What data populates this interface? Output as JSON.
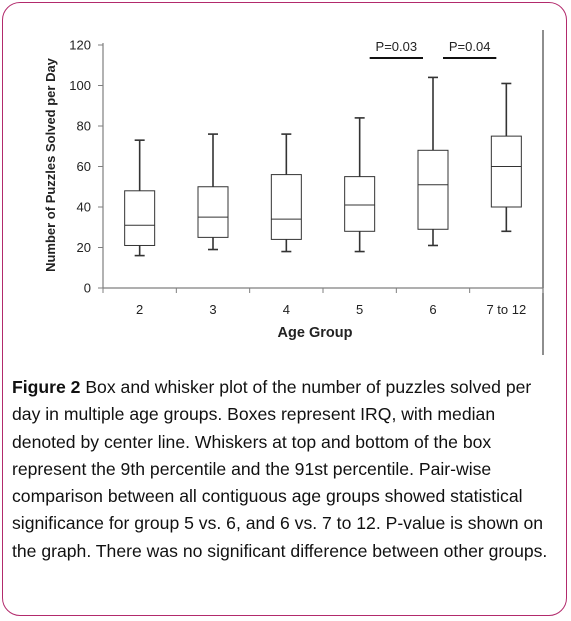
{
  "chart_data": {
    "type": "box",
    "xlabel": "Age Group",
    "ylabel": "Number of Puzzles Solved per Day",
    "ylim": [
      0,
      120
    ],
    "yticks": [
      0,
      20,
      40,
      60,
      80,
      100,
      120
    ],
    "grid": false,
    "categories": [
      "2",
      "3",
      "4",
      "5",
      "6",
      "7 to 12"
    ],
    "series": [
      {
        "boxes": [
          {
            "group": "2",
            "whisker_low": 16,
            "q1": 21,
            "median": 31,
            "q3": 48,
            "whisker_high": 73
          },
          {
            "group": "3",
            "whisker_low": 19,
            "q1": 25,
            "median": 35,
            "q3": 50,
            "whisker_high": 76
          },
          {
            "group": "4",
            "whisker_low": 18,
            "q1": 24,
            "median": 34,
            "q3": 56,
            "whisker_high": 76
          },
          {
            "group": "5",
            "whisker_low": 18,
            "q1": 28,
            "median": 41,
            "q3": 55,
            "whisker_high": 84
          },
          {
            "group": "6",
            "whisker_low": 21,
            "q1": 29,
            "median": 51,
            "q3": 68,
            "whisker_high": 104
          },
          {
            "group": "7 to 12",
            "whisker_low": 28,
            "q1": 40,
            "median": 60,
            "q3": 75,
            "whisker_high": 101
          }
        ]
      }
    ],
    "annotations": [
      {
        "text": "P=0.03",
        "from": "5",
        "to": "6"
      },
      {
        "text": "P=0.04",
        "from": "6",
        "to": "7 to 12"
      }
    ]
  },
  "caption": {
    "label": "Figure 2",
    "text": " Box and whisker plot of the number of puzzles solved per day in multiple age groups. Boxes represent IRQ, with median denoted by center line. Whiskers at top and bottom of the box represent the 9th percentile and the 91st percentile. Pair-wise comparison between all contiguous age groups showed statistical significance for group 5 vs. 6, and 6 vs. 7 to 12. P-value is shown on the graph. There was no significant difference between other groups."
  },
  "colors": {
    "frame": "#b22a6c",
    "axis": "#7f7f7f",
    "box": "#333333"
  }
}
